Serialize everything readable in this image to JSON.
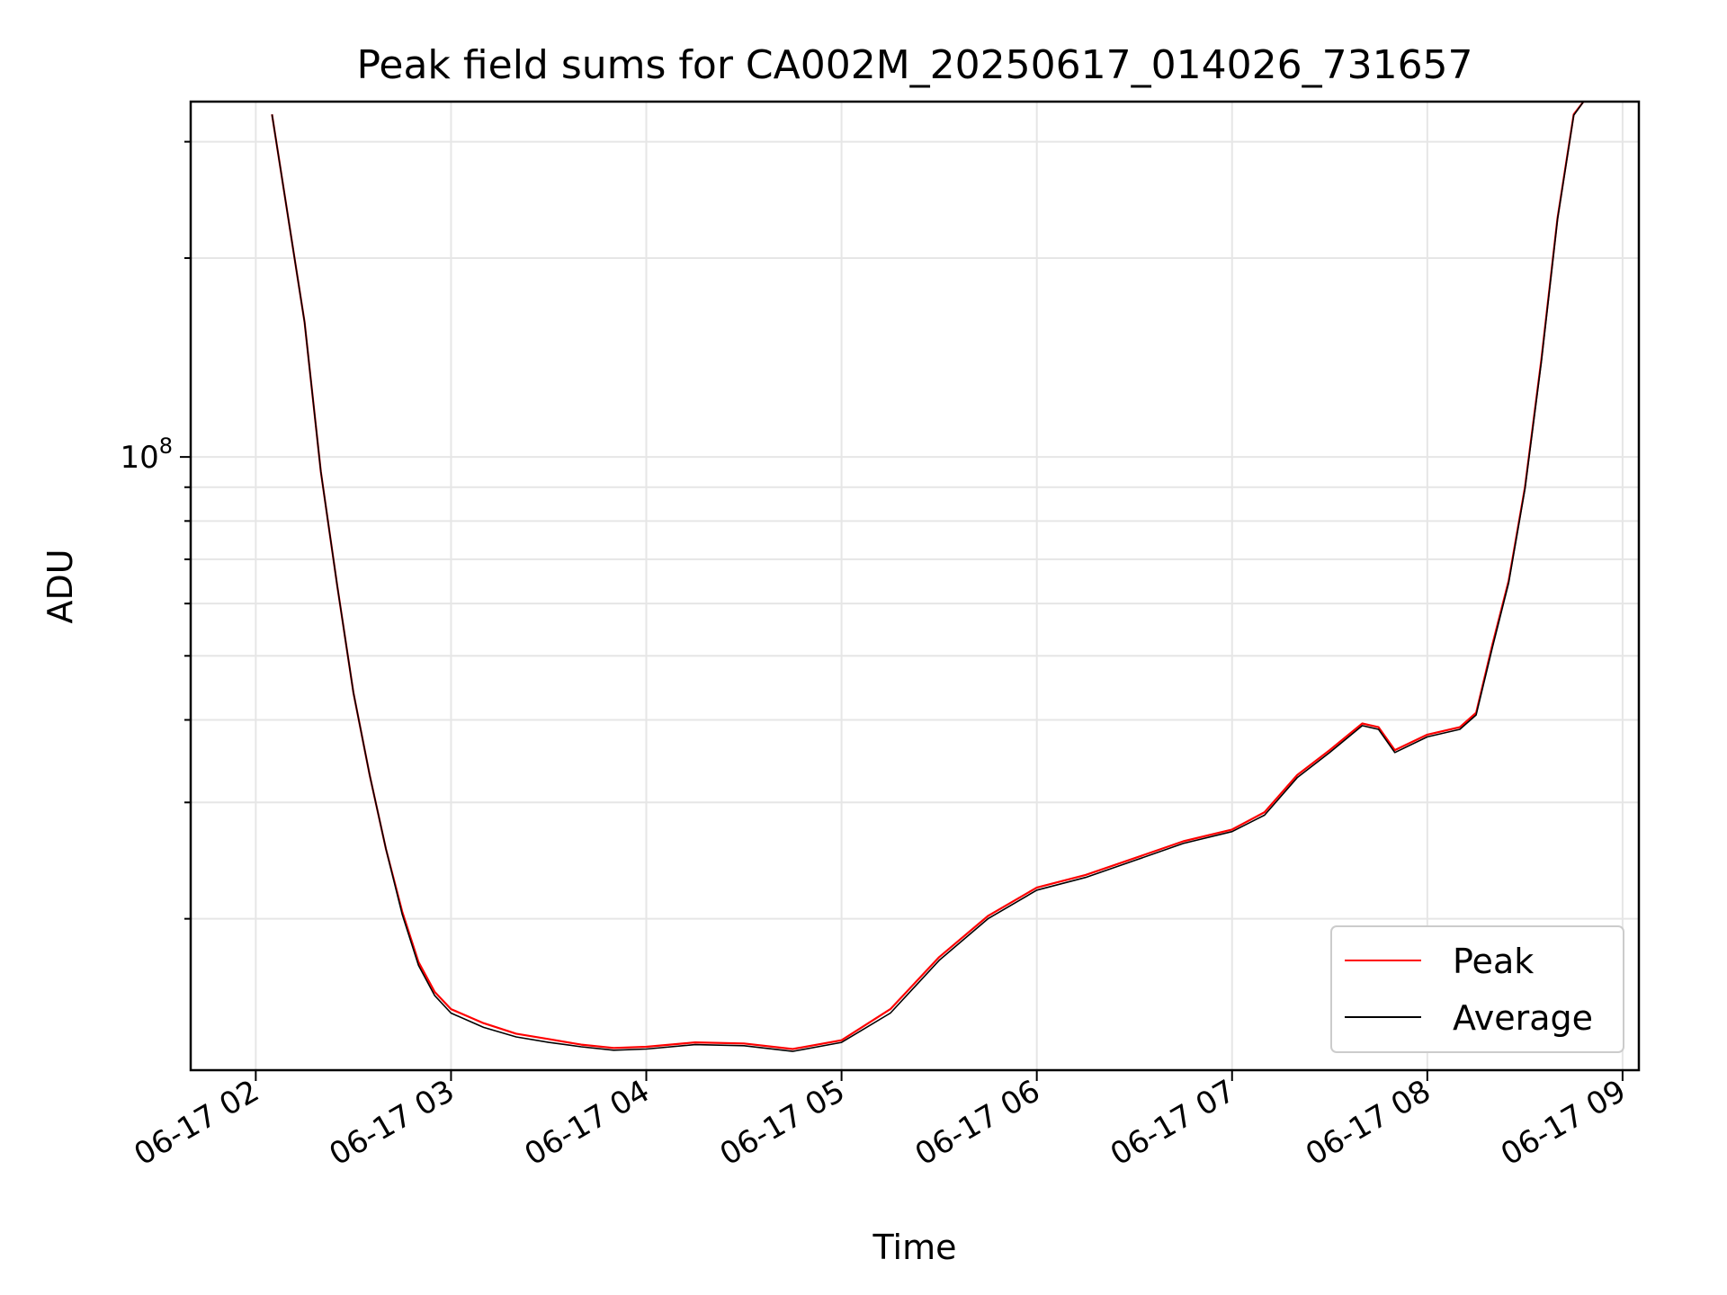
{
  "chart_data": {
    "type": "line",
    "title": "Peak field sums for CA002M_20250617_014026_731657",
    "xlabel": "Time",
    "ylabel": "ADU",
    "yscale": "log",
    "xlim": [
      "2025-06-17T01:40:00",
      "2025-06-17T09:05:00"
    ],
    "ylim": [
      11800000,
      345000000
    ],
    "x_ticks": [
      "06-17 02",
      "06-17 03",
      "06-17 04",
      "06-17 05",
      "06-17 06",
      "06-17 07",
      "06-17 08",
      "06-17 09"
    ],
    "y_ticks": [
      "10^8"
    ],
    "grid": true,
    "legend_position": "lower right",
    "series": [
      {
        "name": "Peak",
        "color": "#ff0000",
        "x": [
          "2025-06-17T02:05:00",
          "2025-06-17T02:15:00",
          "2025-06-17T02:20:00",
          "2025-06-17T02:25:00",
          "2025-06-17T02:30:00",
          "2025-06-17T02:35:00",
          "2025-06-17T02:40:00",
          "2025-06-17T02:45:00",
          "2025-06-17T02:50:00",
          "2025-06-17T02:55:00",
          "2025-06-17T03:00:00",
          "2025-06-17T03:10:00",
          "2025-06-17T03:20:00",
          "2025-06-17T03:30:00",
          "2025-06-17T03:40:00",
          "2025-06-17T03:50:00",
          "2025-06-17T04:00:00",
          "2025-06-17T04:15:00",
          "2025-06-17T04:30:00",
          "2025-06-17T04:45:00",
          "2025-06-17T05:00:00",
          "2025-06-17T05:15:00",
          "2025-06-17T05:30:00",
          "2025-06-17T05:45:00",
          "2025-06-17T06:00:00",
          "2025-06-17T06:15:00",
          "2025-06-17T06:30:00",
          "2025-06-17T06:45:00",
          "2025-06-17T07:00:00",
          "2025-06-17T07:10:00",
          "2025-06-17T07:20:00",
          "2025-06-17T07:30:00",
          "2025-06-17T07:40:00",
          "2025-06-17T07:45:00",
          "2025-06-17T07:50:00",
          "2025-06-17T08:00:00",
          "2025-06-17T08:10:00",
          "2025-06-17T08:15:00",
          "2025-06-17T08:20:00",
          "2025-06-17T08:25:00",
          "2025-06-17T08:30:00",
          "2025-06-17T08:35:00",
          "2025-06-17T08:40:00",
          "2025-06-17T08:45:00",
          "2025-06-17T08:48:00"
        ],
        "values": [
          330000000,
          160000000,
          95000000,
          64000000,
          44000000,
          33000000,
          25500000,
          20500000,
          17200000,
          15500000,
          14600000,
          13900000,
          13400000,
          13150000,
          12900000,
          12750000,
          12800000,
          13000000,
          12950000,
          12700000,
          13100000,
          14600000,
          17500000,
          20200000,
          22300000,
          23300000,
          24700000,
          26200000,
          27300000,
          29000000,
          33000000,
          36000000,
          39500000,
          39000000,
          36000000,
          38000000,
          39000000,
          41000000,
          52000000,
          65000000,
          90000000,
          140000000,
          230000000,
          330000000,
          345000000
        ]
      },
      {
        "name": "Average",
        "color": "#000000",
        "x": [
          "2025-06-17T02:05:00",
          "2025-06-17T02:15:00",
          "2025-06-17T02:20:00",
          "2025-06-17T02:25:00",
          "2025-06-17T02:30:00",
          "2025-06-17T02:35:00",
          "2025-06-17T02:40:00",
          "2025-06-17T02:45:00",
          "2025-06-17T02:50:00",
          "2025-06-17T02:55:00",
          "2025-06-17T03:00:00",
          "2025-06-17T03:10:00",
          "2025-06-17T03:20:00",
          "2025-06-17T03:30:00",
          "2025-06-17T03:40:00",
          "2025-06-17T03:50:00",
          "2025-06-17T04:00:00",
          "2025-06-17T04:15:00",
          "2025-06-17T04:30:00",
          "2025-06-17T04:45:00",
          "2025-06-17T05:00:00",
          "2025-06-17T05:15:00",
          "2025-06-17T05:30:00",
          "2025-06-17T05:45:00",
          "2025-06-17T06:00:00",
          "2025-06-17T06:15:00",
          "2025-06-17T06:30:00",
          "2025-06-17T06:45:00",
          "2025-06-17T07:00:00",
          "2025-06-17T07:10:00",
          "2025-06-17T07:20:00",
          "2025-06-17T07:30:00",
          "2025-06-17T07:40:00",
          "2025-06-17T07:45:00",
          "2025-06-17T07:50:00",
          "2025-06-17T08:00:00",
          "2025-06-17T08:10:00",
          "2025-06-17T08:15:00",
          "2025-06-17T08:20:00",
          "2025-06-17T08:25:00",
          "2025-06-17T08:30:00",
          "2025-06-17T08:35:00",
          "2025-06-17T08:40:00",
          "2025-06-17T08:45:00",
          "2025-06-17T08:48:00"
        ],
        "values": [
          330000000,
          160000000,
          95000000,
          64000000,
          44000000,
          33000000,
          25500000,
          20300000,
          17000000,
          15300000,
          14400000,
          13700000,
          13250000,
          13000000,
          12800000,
          12650000,
          12700000,
          12900000,
          12850000,
          12600000,
          13000000,
          14400000,
          17300000,
          20000000,
          22100000,
          23100000,
          24500000,
          26000000,
          27100000,
          28700000,
          32700000,
          35700000,
          39200000,
          38700000,
          35700000,
          37700000,
          38700000,
          40700000,
          51500000,
          64500000,
          89500000,
          139000000,
          229000000,
          329000000,
          345000000
        ]
      }
    ]
  }
}
